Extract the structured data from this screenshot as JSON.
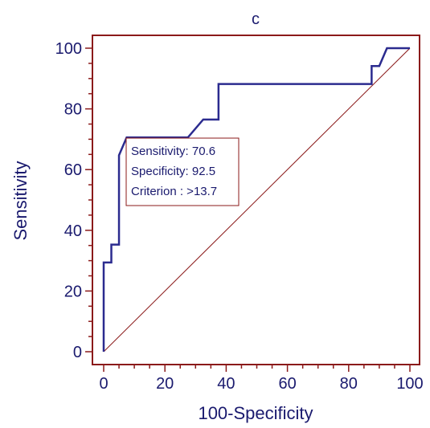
{
  "chart_data": {
    "type": "line",
    "title": "c",
    "xlabel": "100-Specificity",
    "ylabel": "Sensitivity",
    "xlim": [
      0,
      100
    ],
    "ylim": [
      0,
      100
    ],
    "x_ticks": [
      0,
      20,
      40,
      60,
      80,
      100
    ],
    "y_ticks": [
      0,
      20,
      40,
      60,
      80,
      100
    ],
    "grid": false,
    "legend": false,
    "series": [
      {
        "points": [
          [
            0,
            0
          ],
          [
            0,
            29.4
          ],
          [
            2.5,
            29.4
          ],
          [
            2.5,
            35.3
          ],
          [
            5,
            35.3
          ],
          [
            5,
            64.7
          ],
          [
            7.5,
            70.6
          ],
          [
            27.5,
            70.6
          ],
          [
            32.5,
            76.5
          ],
          [
            37.5,
            76.5
          ],
          [
            37.5,
            88.2
          ],
          [
            87.5,
            88.2
          ],
          [
            87.5,
            94.1
          ],
          [
            90,
            94.1
          ],
          [
            92.5,
            100
          ],
          [
            100,
            100
          ]
        ],
        "color": "#2b2b8f"
      }
    ],
    "reference_line": {
      "points": [
        [
          0,
          0
        ],
        [
          100,
          100
        ]
      ],
      "color": "#8b1a1a"
    },
    "annotation": {
      "lines": [
        "Sensitivity: 70.6",
        "Specificity: 92.5",
        "Criterion : >13.7"
      ]
    },
    "colors": {
      "frame": "#8b1a1a",
      "text": "#1a1a6e",
      "curve": "#2b2b8f",
      "diagonal": "#8b1a1a"
    }
  }
}
